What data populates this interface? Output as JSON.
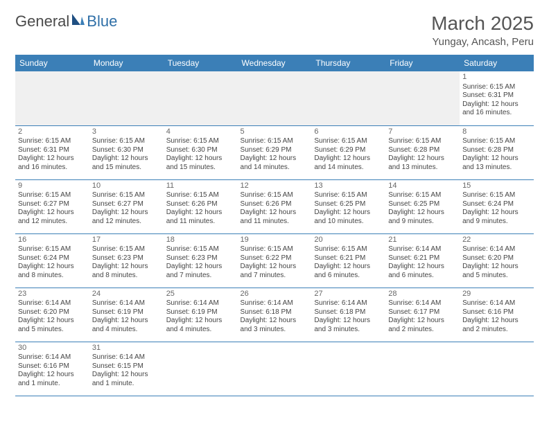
{
  "brand": {
    "part1": "General",
    "part2": "Blue"
  },
  "title": "March 2025",
  "location": "Yungay, Ancash, Peru",
  "colors": {
    "header_bg": "#3b7fb7",
    "header_text": "#ffffff",
    "rule": "#3b7fb7",
    "page_bg": "#ffffff",
    "blank_bg": "#f0f0f0",
    "text": "#444444"
  },
  "fonts": {
    "title_pt": 28,
    "location_pt": 15,
    "dayhead_pt": 12,
    "cell_pt": 10,
    "daynum_pt": 11
  },
  "weekdays": [
    "Sunday",
    "Monday",
    "Tuesday",
    "Wednesday",
    "Thursday",
    "Friday",
    "Saturday"
  ],
  "weeks": [
    [
      null,
      null,
      null,
      null,
      null,
      null,
      {
        "n": "1",
        "sunrise": "Sunrise: 6:15 AM",
        "sunset": "Sunset: 6:31 PM",
        "day1": "Daylight: 12 hours",
        "day2": "and 16 minutes."
      }
    ],
    [
      {
        "n": "2",
        "sunrise": "Sunrise: 6:15 AM",
        "sunset": "Sunset: 6:31 PM",
        "day1": "Daylight: 12 hours",
        "day2": "and 16 minutes."
      },
      {
        "n": "3",
        "sunrise": "Sunrise: 6:15 AM",
        "sunset": "Sunset: 6:30 PM",
        "day1": "Daylight: 12 hours",
        "day2": "and 15 minutes."
      },
      {
        "n": "4",
        "sunrise": "Sunrise: 6:15 AM",
        "sunset": "Sunset: 6:30 PM",
        "day1": "Daylight: 12 hours",
        "day2": "and 15 minutes."
      },
      {
        "n": "5",
        "sunrise": "Sunrise: 6:15 AM",
        "sunset": "Sunset: 6:29 PM",
        "day1": "Daylight: 12 hours",
        "day2": "and 14 minutes."
      },
      {
        "n": "6",
        "sunrise": "Sunrise: 6:15 AM",
        "sunset": "Sunset: 6:29 PM",
        "day1": "Daylight: 12 hours",
        "day2": "and 14 minutes."
      },
      {
        "n": "7",
        "sunrise": "Sunrise: 6:15 AM",
        "sunset": "Sunset: 6:28 PM",
        "day1": "Daylight: 12 hours",
        "day2": "and 13 minutes."
      },
      {
        "n": "8",
        "sunrise": "Sunrise: 6:15 AM",
        "sunset": "Sunset: 6:28 PM",
        "day1": "Daylight: 12 hours",
        "day2": "and 13 minutes."
      }
    ],
    [
      {
        "n": "9",
        "sunrise": "Sunrise: 6:15 AM",
        "sunset": "Sunset: 6:27 PM",
        "day1": "Daylight: 12 hours",
        "day2": "and 12 minutes."
      },
      {
        "n": "10",
        "sunrise": "Sunrise: 6:15 AM",
        "sunset": "Sunset: 6:27 PM",
        "day1": "Daylight: 12 hours",
        "day2": "and 12 minutes."
      },
      {
        "n": "11",
        "sunrise": "Sunrise: 6:15 AM",
        "sunset": "Sunset: 6:26 PM",
        "day1": "Daylight: 12 hours",
        "day2": "and 11 minutes."
      },
      {
        "n": "12",
        "sunrise": "Sunrise: 6:15 AM",
        "sunset": "Sunset: 6:26 PM",
        "day1": "Daylight: 12 hours",
        "day2": "and 11 minutes."
      },
      {
        "n": "13",
        "sunrise": "Sunrise: 6:15 AM",
        "sunset": "Sunset: 6:25 PM",
        "day1": "Daylight: 12 hours",
        "day2": "and 10 minutes."
      },
      {
        "n": "14",
        "sunrise": "Sunrise: 6:15 AM",
        "sunset": "Sunset: 6:25 PM",
        "day1": "Daylight: 12 hours",
        "day2": "and 9 minutes."
      },
      {
        "n": "15",
        "sunrise": "Sunrise: 6:15 AM",
        "sunset": "Sunset: 6:24 PM",
        "day1": "Daylight: 12 hours",
        "day2": "and 9 minutes."
      }
    ],
    [
      {
        "n": "16",
        "sunrise": "Sunrise: 6:15 AM",
        "sunset": "Sunset: 6:24 PM",
        "day1": "Daylight: 12 hours",
        "day2": "and 8 minutes."
      },
      {
        "n": "17",
        "sunrise": "Sunrise: 6:15 AM",
        "sunset": "Sunset: 6:23 PM",
        "day1": "Daylight: 12 hours",
        "day2": "and 8 minutes."
      },
      {
        "n": "18",
        "sunrise": "Sunrise: 6:15 AM",
        "sunset": "Sunset: 6:23 PM",
        "day1": "Daylight: 12 hours",
        "day2": "and 7 minutes."
      },
      {
        "n": "19",
        "sunrise": "Sunrise: 6:15 AM",
        "sunset": "Sunset: 6:22 PM",
        "day1": "Daylight: 12 hours",
        "day2": "and 7 minutes."
      },
      {
        "n": "20",
        "sunrise": "Sunrise: 6:15 AM",
        "sunset": "Sunset: 6:21 PM",
        "day1": "Daylight: 12 hours",
        "day2": "and 6 minutes."
      },
      {
        "n": "21",
        "sunrise": "Sunrise: 6:14 AM",
        "sunset": "Sunset: 6:21 PM",
        "day1": "Daylight: 12 hours",
        "day2": "and 6 minutes."
      },
      {
        "n": "22",
        "sunrise": "Sunrise: 6:14 AM",
        "sunset": "Sunset: 6:20 PM",
        "day1": "Daylight: 12 hours",
        "day2": "and 5 minutes."
      }
    ],
    [
      {
        "n": "23",
        "sunrise": "Sunrise: 6:14 AM",
        "sunset": "Sunset: 6:20 PM",
        "day1": "Daylight: 12 hours",
        "day2": "and 5 minutes."
      },
      {
        "n": "24",
        "sunrise": "Sunrise: 6:14 AM",
        "sunset": "Sunset: 6:19 PM",
        "day1": "Daylight: 12 hours",
        "day2": "and 4 minutes."
      },
      {
        "n": "25",
        "sunrise": "Sunrise: 6:14 AM",
        "sunset": "Sunset: 6:19 PM",
        "day1": "Daylight: 12 hours",
        "day2": "and 4 minutes."
      },
      {
        "n": "26",
        "sunrise": "Sunrise: 6:14 AM",
        "sunset": "Sunset: 6:18 PM",
        "day1": "Daylight: 12 hours",
        "day2": "and 3 minutes."
      },
      {
        "n": "27",
        "sunrise": "Sunrise: 6:14 AM",
        "sunset": "Sunset: 6:18 PM",
        "day1": "Daylight: 12 hours",
        "day2": "and 3 minutes."
      },
      {
        "n": "28",
        "sunrise": "Sunrise: 6:14 AM",
        "sunset": "Sunset: 6:17 PM",
        "day1": "Daylight: 12 hours",
        "day2": "and 2 minutes."
      },
      {
        "n": "29",
        "sunrise": "Sunrise: 6:14 AM",
        "sunset": "Sunset: 6:16 PM",
        "day1": "Daylight: 12 hours",
        "day2": "and 2 minutes."
      }
    ],
    [
      {
        "n": "30",
        "sunrise": "Sunrise: 6:14 AM",
        "sunset": "Sunset: 6:16 PM",
        "day1": "Daylight: 12 hours",
        "day2": "and 1 minute."
      },
      {
        "n": "31",
        "sunrise": "Sunrise: 6:14 AM",
        "sunset": "Sunset: 6:15 PM",
        "day1": "Daylight: 12 hours",
        "day2": "and 1 minute."
      },
      null,
      null,
      null,
      null,
      null
    ]
  ]
}
